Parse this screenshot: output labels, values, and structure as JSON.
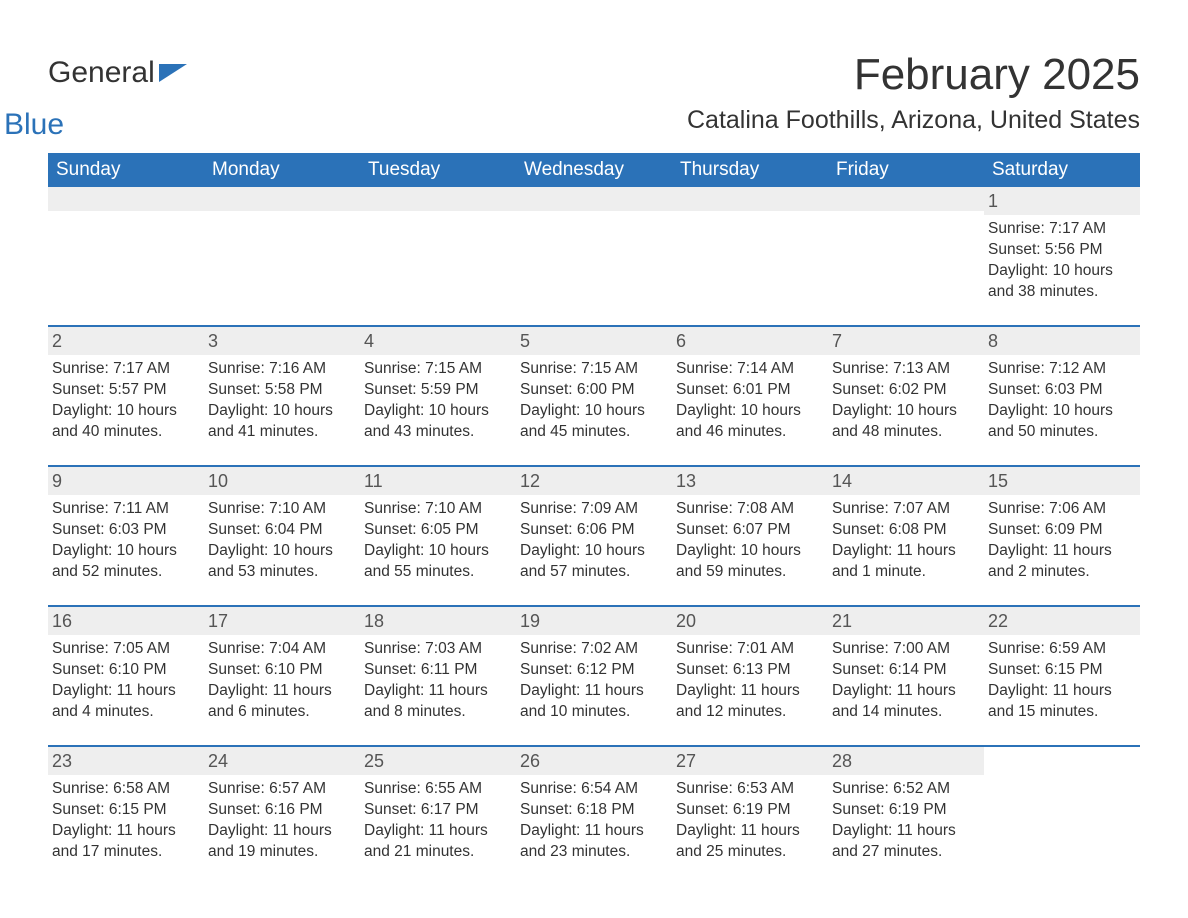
{
  "logo": {
    "word1": "General",
    "word2": "Blue"
  },
  "title": "February 2025",
  "location": "Catalina Foothills, Arizona, United States",
  "colors": {
    "header_bg": "#2b72b8",
    "header_text": "#ffffff",
    "row_divider": "#2b72b8",
    "daynum_bg": "#eeeeee",
    "text": "#333333",
    "logo_accent": "#2b72b8"
  },
  "day_names": [
    "Sunday",
    "Monday",
    "Tuesday",
    "Wednesday",
    "Thursday",
    "Friday",
    "Saturday"
  ],
  "weeks": [
    [
      null,
      null,
      null,
      null,
      null,
      null,
      {
        "n": "1",
        "sunrise": "7:17 AM",
        "sunset": "5:56 PM",
        "daylight": "10 hours and 38 minutes."
      }
    ],
    [
      {
        "n": "2",
        "sunrise": "7:17 AM",
        "sunset": "5:57 PM",
        "daylight": "10 hours and 40 minutes."
      },
      {
        "n": "3",
        "sunrise": "7:16 AM",
        "sunset": "5:58 PM",
        "daylight": "10 hours and 41 minutes."
      },
      {
        "n": "4",
        "sunrise": "7:15 AM",
        "sunset": "5:59 PM",
        "daylight": "10 hours and 43 minutes."
      },
      {
        "n": "5",
        "sunrise": "7:15 AM",
        "sunset": "6:00 PM",
        "daylight": "10 hours and 45 minutes."
      },
      {
        "n": "6",
        "sunrise": "7:14 AM",
        "sunset": "6:01 PM",
        "daylight": "10 hours and 46 minutes."
      },
      {
        "n": "7",
        "sunrise": "7:13 AM",
        "sunset": "6:02 PM",
        "daylight": "10 hours and 48 minutes."
      },
      {
        "n": "8",
        "sunrise": "7:12 AM",
        "sunset": "6:03 PM",
        "daylight": "10 hours and 50 minutes."
      }
    ],
    [
      {
        "n": "9",
        "sunrise": "7:11 AM",
        "sunset": "6:03 PM",
        "daylight": "10 hours and 52 minutes."
      },
      {
        "n": "10",
        "sunrise": "7:10 AM",
        "sunset": "6:04 PM",
        "daylight": "10 hours and 53 minutes."
      },
      {
        "n": "11",
        "sunrise": "7:10 AM",
        "sunset": "6:05 PM",
        "daylight": "10 hours and 55 minutes."
      },
      {
        "n": "12",
        "sunrise": "7:09 AM",
        "sunset": "6:06 PM",
        "daylight": "10 hours and 57 minutes."
      },
      {
        "n": "13",
        "sunrise": "7:08 AM",
        "sunset": "6:07 PM",
        "daylight": "10 hours and 59 minutes."
      },
      {
        "n": "14",
        "sunrise": "7:07 AM",
        "sunset": "6:08 PM",
        "daylight": "11 hours and 1 minute."
      },
      {
        "n": "15",
        "sunrise": "7:06 AM",
        "sunset": "6:09 PM",
        "daylight": "11 hours and 2 minutes."
      }
    ],
    [
      {
        "n": "16",
        "sunrise": "7:05 AM",
        "sunset": "6:10 PM",
        "daylight": "11 hours and 4 minutes."
      },
      {
        "n": "17",
        "sunrise": "7:04 AM",
        "sunset": "6:10 PM",
        "daylight": "11 hours and 6 minutes."
      },
      {
        "n": "18",
        "sunrise": "7:03 AM",
        "sunset": "6:11 PM",
        "daylight": "11 hours and 8 minutes."
      },
      {
        "n": "19",
        "sunrise": "7:02 AM",
        "sunset": "6:12 PM",
        "daylight": "11 hours and 10 minutes."
      },
      {
        "n": "20",
        "sunrise": "7:01 AM",
        "sunset": "6:13 PM",
        "daylight": "11 hours and 12 minutes."
      },
      {
        "n": "21",
        "sunrise": "7:00 AM",
        "sunset": "6:14 PM",
        "daylight": "11 hours and 14 minutes."
      },
      {
        "n": "22",
        "sunrise": "6:59 AM",
        "sunset": "6:15 PM",
        "daylight": "11 hours and 15 minutes."
      }
    ],
    [
      {
        "n": "23",
        "sunrise": "6:58 AM",
        "sunset": "6:15 PM",
        "daylight": "11 hours and 17 minutes."
      },
      {
        "n": "24",
        "sunrise": "6:57 AM",
        "sunset": "6:16 PM",
        "daylight": "11 hours and 19 minutes."
      },
      {
        "n": "25",
        "sunrise": "6:55 AM",
        "sunset": "6:17 PM",
        "daylight": "11 hours and 21 minutes."
      },
      {
        "n": "26",
        "sunrise": "6:54 AM",
        "sunset": "6:18 PM",
        "daylight": "11 hours and 23 minutes."
      },
      {
        "n": "27",
        "sunrise": "6:53 AM",
        "sunset": "6:19 PM",
        "daylight": "11 hours and 25 minutes."
      },
      {
        "n": "28",
        "sunrise": "6:52 AM",
        "sunset": "6:19 PM",
        "daylight": "11 hours and 27 minutes."
      },
      null
    ]
  ],
  "labels": {
    "sunrise": "Sunrise: ",
    "sunset": "Sunset: ",
    "daylight": "Daylight: "
  }
}
